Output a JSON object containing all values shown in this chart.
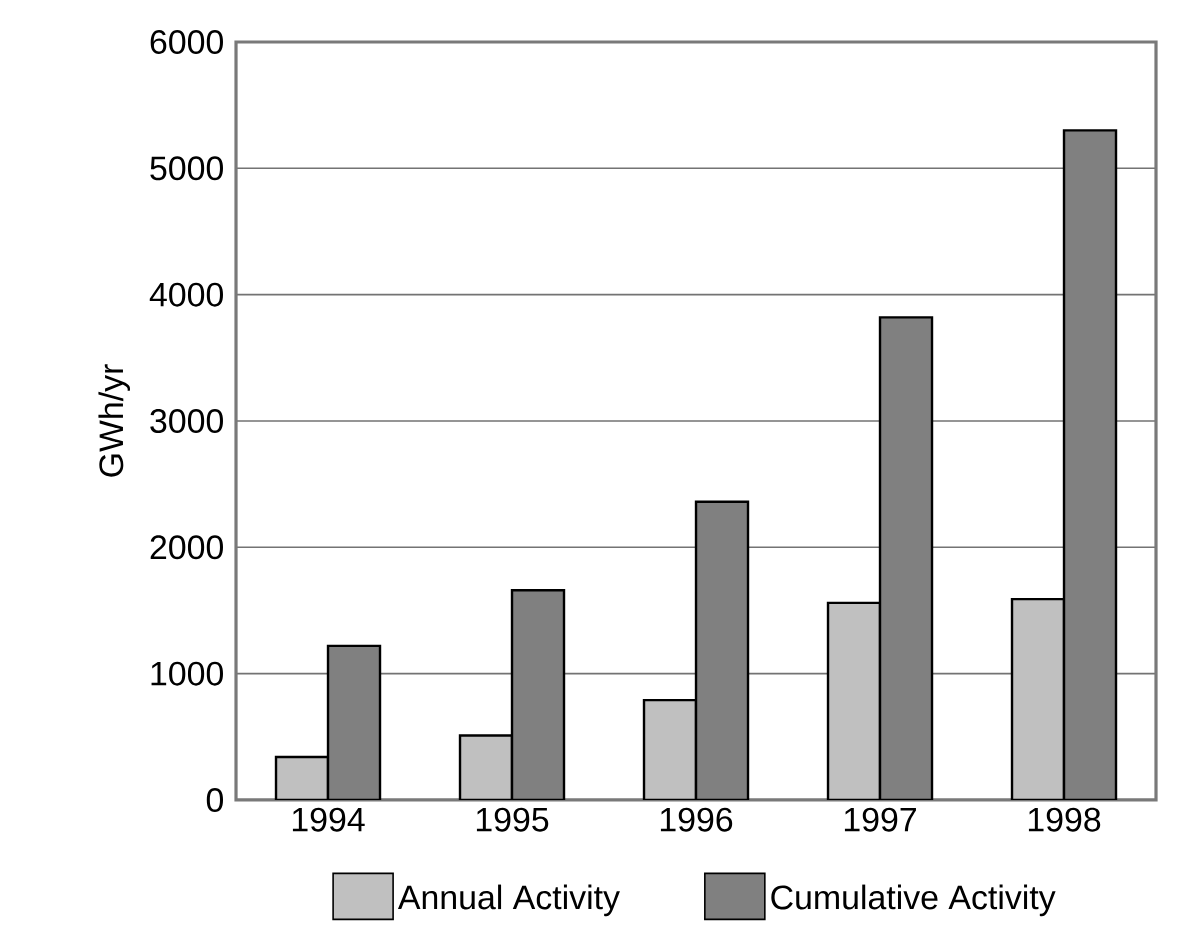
{
  "chart_data": {
    "type": "bar",
    "ylabel": "GWh/yr",
    "categories": [
      "1994",
      "1995",
      "1996",
      "1997",
      "1998"
    ],
    "series": [
      {
        "name": "Annual Activity",
        "color": "#c0c0c0",
        "values": [
          340,
          510,
          790,
          1560,
          1590
        ]
      },
      {
        "name": "Cumulative Activity",
        "color": "#808080",
        "values": [
          1220,
          1660,
          2360,
          3820,
          5300
        ]
      }
    ],
    "ylim": [
      0,
      6000
    ],
    "yticks": [
      0,
      1000,
      2000,
      3000,
      4000,
      5000,
      6000
    ],
    "grid": "y",
    "legend": "bottom"
  }
}
